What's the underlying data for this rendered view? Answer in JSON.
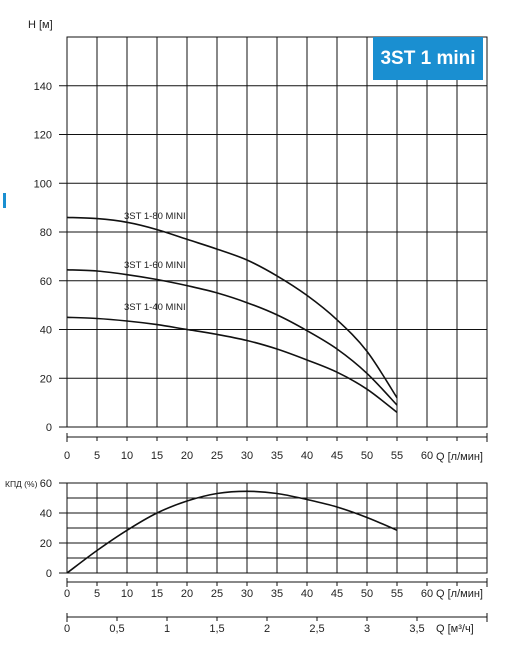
{
  "accent_color": "#1a8fd1",
  "badge": "3ST 1 mini",
  "chart_data": [
    {
      "type": "line",
      "ylabel": "H [м]",
      "xlabel": "Q [л/мин]",
      "xlim": [
        0,
        70
      ],
      "ylim": [
        0,
        160
      ],
      "x_ticks": [
        0,
        5,
        10,
        15,
        20,
        25,
        30,
        35,
        40,
        45,
        50,
        55,
        60
      ],
      "y_ticks": [
        0,
        20,
        40,
        60,
        80,
        100,
        120,
        140
      ],
      "grid": true,
      "series": [
        {
          "name": "3ST 1-80 MINI",
          "x": [
            0,
            5,
            10,
            15,
            20,
            25,
            30,
            35,
            40,
            45,
            50,
            55
          ],
          "y": [
            86,
            85.5,
            84,
            81,
            77,
            73,
            68.5,
            62,
            54,
            44,
            31,
            12
          ]
        },
        {
          "name": "3ST 1-60 MINI",
          "x": [
            0,
            5,
            10,
            15,
            20,
            25,
            30,
            35,
            40,
            45,
            50,
            55
          ],
          "y": [
            64.5,
            64,
            62.5,
            60.5,
            58,
            55,
            51,
            46,
            39.5,
            32,
            22,
            9
          ]
        },
        {
          "name": "3ST 1-40 MINI",
          "x": [
            0,
            5,
            10,
            15,
            20,
            25,
            30,
            35,
            40,
            45,
            50,
            55
          ],
          "y": [
            45,
            44.5,
            43.5,
            42,
            40,
            38,
            35.5,
            32,
            27.5,
            22.5,
            15.5,
            6
          ]
        }
      ]
    },
    {
      "type": "line",
      "ylabel": "КПД (%)",
      "xlabel": "Q [л/мин]",
      "secondary_xlabel": "Q [м³/ч]",
      "xlim": [
        0,
        70
      ],
      "ylim": [
        0,
        60
      ],
      "x_ticks": [
        0,
        5,
        10,
        15,
        20,
        25,
        30,
        35,
        40,
        45,
        50,
        55,
        60
      ],
      "secondary_x_ticks": [
        "0",
        "0,5",
        "1",
        "1,5",
        "2",
        "2,5",
        "3",
        "3,5"
      ],
      "y_ticks": [
        0,
        20,
        40,
        60
      ],
      "grid": true,
      "series": [
        {
          "x": [
            0,
            5,
            10,
            15,
            20,
            25,
            30,
            35,
            40,
            45,
            50,
            55
          ],
          "y": [
            0,
            15,
            28.5,
            40,
            48,
            53,
            54.5,
            53,
            49,
            44,
            37,
            28.5
          ]
        }
      ]
    }
  ]
}
